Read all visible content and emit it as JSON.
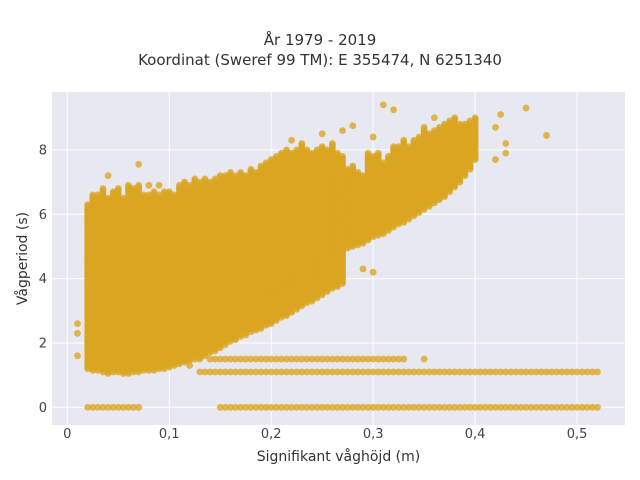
{
  "chart_data": {
    "type": "scatter",
    "title_lines": [
      "År 1979 - 2019",
      "Koordinat (Sweref 99 TM): E 355474, N 6251340"
    ],
    "xlabel": "Signifikant våghöjd (m)",
    "ylabel": "Vågperiod (s)",
    "xlim": [
      -0.015,
      0.547
    ],
    "ylim": [
      -0.55,
      9.8
    ],
    "x_ticks": [
      0,
      0.1,
      0.2,
      0.3,
      0.4,
      0.5
    ],
    "x_tick_labels": [
      "0",
      "0,1",
      "0,2",
      "0,3",
      "0,4",
      "0,5"
    ],
    "y_ticks": [
      0,
      2,
      4,
      6,
      8
    ],
    "y_tick_labels": [
      "0",
      "2",
      "4",
      "6",
      "8"
    ],
    "grid": true,
    "legend": "none",
    "colors": {
      "marker": "#DAA520",
      "plot_bg": "#E8E8F0",
      "grid": "#ffffff"
    },
    "bin_step": 0.005,
    "main_band": [
      [
        0.02,
        1.2,
        6.3
      ],
      [
        0.025,
        1.15,
        6.6
      ],
      [
        0.03,
        1.15,
        6.6
      ],
      [
        0.035,
        1.1,
        6.8
      ],
      [
        0.04,
        1.05,
        6.5
      ],
      [
        0.045,
        1.1,
        6.7
      ],
      [
        0.05,
        1.1,
        6.8
      ],
      [
        0.055,
        1.05,
        6.5
      ],
      [
        0.06,
        1.05,
        6.9
      ],
      [
        0.065,
        1.1,
        6.8
      ],
      [
        0.07,
        1.1,
        6.9
      ],
      [
        0.075,
        1.15,
        6.6
      ],
      [
        0.08,
        1.15,
        6.6
      ],
      [
        0.085,
        1.15,
        6.7
      ],
      [
        0.09,
        1.2,
        6.6
      ],
      [
        0.095,
        1.2,
        6.7
      ],
      [
        0.1,
        1.25,
        6.7
      ],
      [
        0.105,
        1.3,
        6.6
      ],
      [
        0.11,
        1.35,
        6.9
      ],
      [
        0.115,
        1.4,
        7.0
      ],
      [
        0.12,
        1.45,
        6.9
      ],
      [
        0.125,
        1.5,
        7.1
      ],
      [
        0.13,
        1.55,
        7.0
      ],
      [
        0.135,
        1.6,
        7.1
      ],
      [
        0.14,
        1.7,
        7.0
      ],
      [
        0.145,
        1.75,
        7.1
      ],
      [
        0.15,
        1.85,
        7.2
      ],
      [
        0.155,
        1.95,
        7.2
      ],
      [
        0.16,
        2.05,
        7.3
      ],
      [
        0.165,
        2.1,
        7.2
      ],
      [
        0.17,
        2.2,
        7.3
      ],
      [
        0.175,
        2.25,
        7.2
      ],
      [
        0.18,
        2.35,
        7.4
      ],
      [
        0.185,
        2.4,
        7.3
      ],
      [
        0.19,
        2.45,
        7.5
      ],
      [
        0.195,
        2.55,
        7.6
      ],
      [
        0.2,
        2.6,
        7.7
      ],
      [
        0.205,
        2.7,
        7.8
      ],
      [
        0.21,
        2.8,
        7.9
      ],
      [
        0.215,
        2.85,
        8.0
      ],
      [
        0.22,
        2.95,
        7.9
      ],
      [
        0.225,
        3.05,
        8.0
      ],
      [
        0.23,
        3.15,
        8.2
      ],
      [
        0.235,
        3.25,
        8.0
      ],
      [
        0.24,
        3.3,
        7.9
      ],
      [
        0.245,
        3.4,
        8.0
      ],
      [
        0.25,
        3.5,
        8.1
      ],
      [
        0.255,
        3.6,
        8.0
      ],
      [
        0.26,
        3.7,
        8.2
      ],
      [
        0.265,
        3.75,
        7.9
      ],
      [
        0.27,
        3.85,
        7.8
      ]
    ],
    "upper_band": [
      [
        0.255,
        4.7,
        7.3
      ],
      [
        0.26,
        4.8,
        7.3
      ],
      [
        0.265,
        4.9,
        7.4
      ],
      [
        0.27,
        4.9,
        7.3
      ],
      [
        0.275,
        4.95,
        7.4
      ],
      [
        0.28,
        5.0,
        7.5
      ],
      [
        0.285,
        5.05,
        7.3
      ],
      [
        0.29,
        5.1,
        7.2
      ],
      [
        0.295,
        5.2,
        7.9
      ],
      [
        0.3,
        5.3,
        7.8
      ],
      [
        0.305,
        5.35,
        7.9
      ],
      [
        0.31,
        5.4,
        7.6
      ],
      [
        0.315,
        5.5,
        7.8
      ],
      [
        0.32,
        5.6,
        8.1
      ],
      [
        0.325,
        5.7,
        8.1
      ],
      [
        0.33,
        5.75,
        8.3
      ],
      [
        0.335,
        5.85,
        8.1
      ],
      [
        0.34,
        5.95,
        8.3
      ],
      [
        0.345,
        6.05,
        8.4
      ],
      [
        0.35,
        6.15,
        8.7
      ],
      [
        0.355,
        6.25,
        8.5
      ],
      [
        0.36,
        6.35,
        8.6
      ],
      [
        0.365,
        6.45,
        8.7
      ],
      [
        0.37,
        6.55,
        8.8
      ],
      [
        0.375,
        6.7,
        8.9
      ],
      [
        0.38,
        6.85,
        9.0
      ],
      [
        0.385,
        7.0,
        8.8
      ],
      [
        0.39,
        7.2,
        8.8
      ],
      [
        0.395,
        7.4,
        8.9
      ],
      [
        0.4,
        7.7,
        9.0
      ]
    ],
    "lower_branch": [
      [
        0.2,
        3.4,
        3.8
      ],
      [
        0.205,
        3.5,
        3.9
      ],
      [
        0.21,
        3.6,
        4.0
      ],
      [
        0.215,
        3.7,
        4.1
      ],
      [
        0.22,
        3.75,
        4.2
      ],
      [
        0.225,
        3.8,
        4.3
      ],
      [
        0.23,
        3.9,
        4.4
      ],
      [
        0.235,
        3.95,
        4.5
      ],
      [
        0.24,
        4.0,
        4.5
      ],
      [
        0.245,
        4.05,
        4.6
      ],
      [
        0.25,
        4.1,
        4.7
      ]
    ],
    "zero_row": {
      "y": 0,
      "x_ranges": [
        [
          0.02,
          0.07
        ],
        [
          0.15,
          0.52
        ]
      ]
    },
    "low_rows": [
      {
        "y": 1.1,
        "x_ranges": [
          [
            0.13,
            0.52
          ]
        ]
      },
      {
        "y": 1.5,
        "x_ranges": [
          [
            0.14,
            0.33
          ]
        ]
      }
    ],
    "isolated_points": [
      [
        0.01,
        2.6
      ],
      [
        0.01,
        2.3
      ],
      [
        0.01,
        1.6
      ],
      [
        0.02,
        5.9
      ],
      [
        0.02,
        4.5
      ],
      [
        0.04,
        7.2
      ],
      [
        0.07,
        7.55
      ],
      [
        0.08,
        6.9
      ],
      [
        0.09,
        6.9
      ],
      [
        0.12,
        1.3
      ],
      [
        0.13,
        1.5
      ],
      [
        0.22,
        8.3
      ],
      [
        0.25,
        8.5
      ],
      [
        0.27,
        8.6
      ],
      [
        0.28,
        8.75
      ],
      [
        0.29,
        4.3
      ],
      [
        0.3,
        8.4
      ],
      [
        0.3,
        4.2
      ],
      [
        0.31,
        9.4
      ],
      [
        0.32,
        9.25
      ],
      [
        0.33,
        8.0
      ],
      [
        0.35,
        1.5
      ],
      [
        0.36,
        9.0
      ],
      [
        0.365,
        8.4
      ],
      [
        0.42,
        8.7
      ],
      [
        0.42,
        7.7
      ],
      [
        0.43,
        7.9
      ],
      [
        0.43,
        8.2
      ],
      [
        0.425,
        9.1
      ],
      [
        0.45,
        9.3
      ],
      [
        0.47,
        8.45
      ]
    ]
  }
}
